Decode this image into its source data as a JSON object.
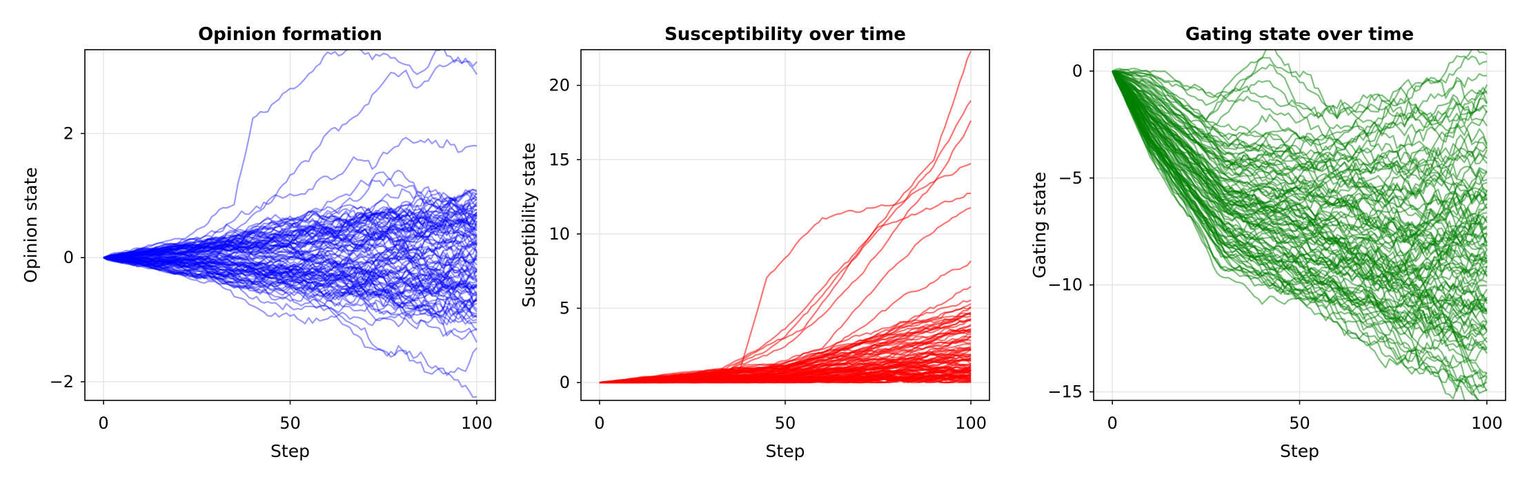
{
  "chart_data": [
    {
      "type": "line",
      "title": "Opinion formation",
      "xlabel": "Step",
      "ylabel": "Opinion state",
      "xlim": [
        -5,
        105
      ],
      "ylim": [
        -2.3,
        3.35
      ],
      "xticks": [
        0,
        50,
        100
      ],
      "yticks": [
        -2,
        0,
        2
      ],
      "xtick_labels": [
        "0",
        "50",
        "100"
      ],
      "ytick_labels": [
        "−2",
        "0",
        "2"
      ],
      "grid": true,
      "legend": "none",
      "color": "#0000ff",
      "line_opacity": 0.4,
      "series_count": 100,
      "series": [
        {
          "x": [
            0,
            20,
            35,
            40,
            60,
            80,
            100
          ],
          "values": [
            0,
            0.3,
            0.7,
            2.1,
            3.2,
            3.2,
            3.15
          ]
        },
        {
          "x": [
            0,
            25,
            45,
            60,
            80,
            100
          ],
          "values": [
            0,
            0.3,
            0.9,
            2.0,
            2.8,
            2.9
          ]
        },
        {
          "x": [
            0,
            30,
            50,
            70,
            85,
            100
          ],
          "values": [
            0,
            0.3,
            1.1,
            1.7,
            2.1,
            2.05
          ]
        },
        {
          "x": [
            0,
            30,
            55,
            75,
            90,
            100
          ],
          "values": [
            0,
            0.2,
            0.8,
            1.4,
            1.2,
            1.25
          ]
        },
        {
          "x": [
            0,
            35,
            60,
            80,
            100
          ],
          "values": [
            0,
            0.3,
            0.6,
            1.2,
            1.0
          ]
        },
        {
          "x": [
            0,
            25,
            50,
            75,
            100
          ],
          "values": [
            0,
            0.2,
            0.4,
            0.6,
            0.55
          ]
        },
        {
          "x": [
            0,
            25,
            50,
            75,
            100
          ],
          "values": [
            0,
            -0.3,
            -0.8,
            -1.1,
            -1.3
          ]
        },
        {
          "x": [
            0,
            30,
            60,
            80,
            100
          ],
          "values": [
            0,
            -0.4,
            -1.2,
            -1.5,
            -1.6
          ]
        },
        {
          "x": [
            0,
            30,
            60,
            90,
            100
          ],
          "values": [
            0,
            -0.4,
            -1.0,
            -1.9,
            -2.3
          ]
        },
        {
          "x": [
            0,
            50,
            100
          ],
          "values": [
            0,
            0.1,
            0.2
          ]
        },
        {
          "x": [
            0,
            50,
            100
          ],
          "values": [
            0,
            -0.1,
            -0.4
          ]
        },
        {
          "x": [
            0,
            50,
            100
          ],
          "values": [
            0,
            0.3,
            0.3
          ]
        },
        {
          "x": [
            0,
            50,
            100
          ],
          "values": [
            0,
            -0.5,
            -0.7
          ]
        },
        {
          "x": [
            0,
            50,
            100
          ],
          "values": [
            0,
            -0.3,
            -0.9
          ]
        },
        {
          "x": [
            0,
            50,
            100
          ],
          "values": [
            0,
            0.2,
            -0.2
          ]
        }
      ]
    },
    {
      "type": "line",
      "title": "Susceptibility over time",
      "xlabel": "Step",
      "ylabel": "Susceptibility state",
      "xlim": [
        -5,
        105
      ],
      "ylim": [
        -1.2,
        22.4
      ],
      "xticks": [
        0,
        50,
        100
      ],
      "yticks": [
        0,
        5,
        10,
        15,
        20
      ],
      "xtick_labels": [
        "0",
        "50",
        "100"
      ],
      "ytick_labels": [
        "0",
        "5",
        "10",
        "15",
        "20"
      ],
      "grid": true,
      "legend": "none",
      "color": "#ff0000",
      "line_opacity": 0.55,
      "series_count": 100,
      "series": [
        {
          "x": [
            0,
            30,
            50,
            70,
            90,
            100
          ],
          "values": [
            0,
            0.4,
            3.5,
            9.0,
            15.0,
            22.4
          ]
        },
        {
          "x": [
            0,
            30,
            50,
            70,
            90,
            100
          ],
          "values": [
            0,
            0.4,
            3.0,
            8.5,
            14.5,
            18.5
          ]
        },
        {
          "x": [
            0,
            30,
            50,
            70,
            90,
            100
          ],
          "values": [
            0,
            0.4,
            2.5,
            7.0,
            13.5,
            17.6
          ]
        },
        {
          "x": [
            0,
            30,
            38,
            45,
            60,
            80,
            100
          ],
          "values": [
            0,
            0.5,
            1.0,
            7.0,
            11.0,
            12.0,
            14.5
          ]
        },
        {
          "x": [
            0,
            30,
            55,
            75,
            100
          ],
          "values": [
            0,
            0.4,
            3.5,
            10.5,
            13.0
          ]
        },
        {
          "x": [
            0,
            35,
            60,
            80,
            100
          ],
          "values": [
            0,
            0.4,
            2.5,
            8.0,
            12.0
          ]
        },
        {
          "x": [
            0,
            30,
            60,
            80,
            100
          ],
          "values": [
            0,
            0.3,
            2.0,
            5.5,
            8.3
          ]
        },
        {
          "x": [
            0,
            40,
            70,
            100
          ],
          "values": [
            0,
            0.5,
            2.5,
            6.5
          ]
        },
        {
          "x": [
            0,
            40,
            70,
            100
          ],
          "values": [
            0,
            0.4,
            2.0,
            5.0
          ]
        },
        {
          "x": [
            0,
            50,
            100
          ],
          "values": [
            0,
            0.8,
            3.5
          ]
        },
        {
          "x": [
            0,
            50,
            100
          ],
          "values": [
            0,
            0.5,
            2.2
          ]
        },
        {
          "x": [
            0,
            50,
            100
          ],
          "values": [
            0,
            0.4,
            1.2
          ]
        },
        {
          "x": [
            0,
            50,
            100
          ],
          "values": [
            0,
            0.3,
            0.6
          ]
        },
        {
          "x": [
            0,
            50,
            100
          ],
          "values": [
            0,
            0.2,
            0.3
          ]
        }
      ]
    },
    {
      "type": "line",
      "title": "Gating state over time",
      "xlabel": "Step",
      "ylabel": "Gating state",
      "xlim": [
        -5,
        105
      ],
      "ylim": [
        -15.4,
        1.0
      ],
      "xticks": [
        0,
        50,
        100
      ],
      "yticks": [
        -15,
        -10,
        -5,
        0
      ],
      "xtick_labels": [
        "0",
        "50",
        "100"
      ],
      "ytick_labels": [
        "−15",
        "−10",
        "−5",
        "0"
      ],
      "grid": true,
      "legend": "none",
      "color": "#008000",
      "line_opacity": 0.5,
      "series_count": 100,
      "series": [
        {
          "x": [
            0,
            10,
            25,
            42,
            60,
            80,
            100
          ],
          "values": [
            0,
            0,
            -2.0,
            1.0,
            -2.0,
            -1.0,
            -0.3
          ]
        },
        {
          "x": [
            0,
            10,
            30,
            50,
            75,
            100
          ],
          "values": [
            0,
            -0.5,
            -3.0,
            -3.5,
            -2.5,
            -1.2
          ]
        },
        {
          "x": [
            0,
            10,
            30,
            60,
            80,
            100
          ],
          "values": [
            0,
            -1.0,
            -4.0,
            -4.5,
            -5.0,
            -4.5
          ]
        },
        {
          "x": [
            0,
            10,
            30,
            60,
            80,
            100
          ],
          "values": [
            0,
            -1.5,
            -4.5,
            -6.0,
            -6.0,
            -5.5
          ]
        },
        {
          "x": [
            0,
            10,
            30,
            60,
            80,
            100
          ],
          "values": [
            0,
            -2.0,
            -5.5,
            -6.5,
            -7.5,
            -7.0
          ]
        },
        {
          "x": [
            0,
            10,
            30,
            60,
            80,
            100
          ],
          "values": [
            0,
            -2.5,
            -6.0,
            -7.5,
            -8.5,
            -8.5
          ]
        },
        {
          "x": [
            0,
            10,
            30,
            60,
            80,
            100
          ],
          "values": [
            0,
            -3.0,
            -7.0,
            -9.0,
            -10.0,
            -10.5
          ]
        },
        {
          "x": [
            0,
            10,
            30,
            60,
            80,
            100
          ],
          "values": [
            0,
            -3.5,
            -8.5,
            -10.5,
            -11.5,
            -12.0
          ]
        },
        {
          "x": [
            0,
            10,
            30,
            60,
            85,
            100
          ],
          "values": [
            0,
            -4.0,
            -9.5,
            -11.5,
            -14.0,
            -15.0
          ]
        },
        {
          "x": [
            0,
            10,
            30,
            60,
            85,
            100
          ],
          "values": [
            0,
            -3.0,
            -8.0,
            -11.0,
            -13.5,
            -15.3
          ]
        },
        {
          "x": [
            0,
            10,
            30,
            60,
            80,
            100
          ],
          "values": [
            0,
            -2.0,
            -5.0,
            -5.5,
            -6.5,
            -6.0
          ]
        },
        {
          "x": [
            0,
            10,
            30,
            60,
            80,
            100
          ],
          "values": [
            0,
            -2.0,
            -6.5,
            -8.0,
            -9.0,
            -9.0
          ]
        }
      ]
    }
  ]
}
